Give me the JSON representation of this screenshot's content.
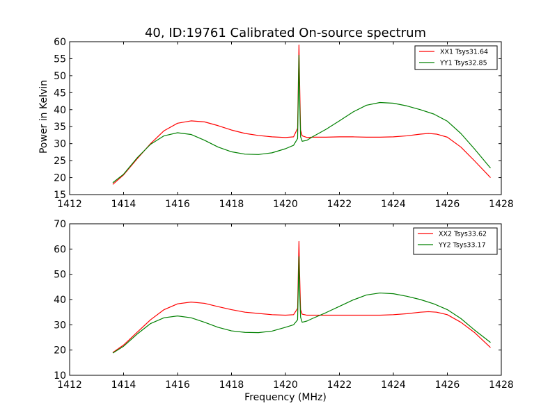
{
  "figure": {
    "title": "40, ID:19761 Calibrated On-source spectrum",
    "xlabel": "Frequency (MHz)",
    "ylabel": "Power in Kelvin"
  },
  "chart_data": [
    {
      "type": "line",
      "title": "40, ID:19761 Calibrated On-source spectrum",
      "xlabel": "",
      "ylabel": "Power in Kelvin",
      "xlim": [
        1412,
        1428
      ],
      "ylim": [
        15,
        60
      ],
      "xticks": [
        1412,
        1414,
        1416,
        1418,
        1420,
        1422,
        1424,
        1426,
        1428
      ],
      "yticks": [
        15,
        20,
        25,
        30,
        35,
        40,
        45,
        50,
        55,
        60
      ],
      "grid": false,
      "legend_position": "top-right",
      "series": [
        {
          "name": "XX1 Tsys31.64",
          "color": "#ff0000",
          "x": [
            1413.6,
            1414.0,
            1414.5,
            1415.0,
            1415.5,
            1416.0,
            1416.5,
            1417.0,
            1417.5,
            1418.0,
            1418.5,
            1419.0,
            1419.5,
            1420.0,
            1420.3,
            1420.45,
            1420.5,
            1420.52,
            1420.56,
            1420.62,
            1420.8,
            1421.0,
            1421.5,
            1422.0,
            1422.5,
            1423.0,
            1423.5,
            1424.0,
            1424.5,
            1425.0,
            1425.3,
            1425.6,
            1426.0,
            1426.5,
            1427.0,
            1427.6
          ],
          "y": [
            18.0,
            20.8,
            25.5,
            30.0,
            33.8,
            36.0,
            36.7,
            36.4,
            35.3,
            34.0,
            33.0,
            32.4,
            32.0,
            31.8,
            32.0,
            34.5,
            59.0,
            50.0,
            34.0,
            32.3,
            31.8,
            31.9,
            31.9,
            32.0,
            32.0,
            31.9,
            31.9,
            32.0,
            32.3,
            32.8,
            33.0,
            32.8,
            31.9,
            29.0,
            25.0,
            20.0
          ]
        },
        {
          "name": "YY1 Tsys32.85",
          "color": "#008000",
          "x": [
            1413.6,
            1414.0,
            1414.5,
            1415.0,
            1415.5,
            1416.0,
            1416.5,
            1417.0,
            1417.5,
            1418.0,
            1418.5,
            1419.0,
            1419.5,
            1420.0,
            1420.3,
            1420.45,
            1420.5,
            1420.52,
            1420.56,
            1420.62,
            1420.8,
            1421.0,
            1421.5,
            1422.0,
            1422.5,
            1423.0,
            1423.5,
            1424.0,
            1424.5,
            1425.0,
            1425.5,
            1426.0,
            1426.5,
            1427.0,
            1427.6
          ],
          "y": [
            18.5,
            21.0,
            25.8,
            29.8,
            32.3,
            33.2,
            32.7,
            31.0,
            29.0,
            27.6,
            26.9,
            26.8,
            27.3,
            28.5,
            29.5,
            31.5,
            56.0,
            45.0,
            32.0,
            30.7,
            31.0,
            32.0,
            34.2,
            36.7,
            39.3,
            41.3,
            42.1,
            41.9,
            41.1,
            40.0,
            38.7,
            36.6,
            33.0,
            28.5,
            22.8
          ]
        }
      ]
    },
    {
      "type": "line",
      "title": "",
      "xlabel": "Frequency (MHz)",
      "ylabel": "",
      "xlim": [
        1412,
        1428
      ],
      "ylim": [
        10,
        70
      ],
      "xticks": [
        1412,
        1414,
        1416,
        1418,
        1420,
        1422,
        1424,
        1426,
        1428
      ],
      "yticks": [
        10,
        20,
        30,
        40,
        50,
        60,
        70
      ],
      "grid": false,
      "legend_position": "top-right",
      "series": [
        {
          "name": "XX2 Tsys33.62",
          "color": "#ff0000",
          "x": [
            1413.6,
            1414.0,
            1414.5,
            1415.0,
            1415.5,
            1416.0,
            1416.5,
            1417.0,
            1417.5,
            1418.0,
            1418.5,
            1419.0,
            1419.5,
            1420.0,
            1420.3,
            1420.45,
            1420.5,
            1420.52,
            1420.56,
            1420.62,
            1420.8,
            1421.0,
            1421.5,
            1422.0,
            1422.5,
            1423.0,
            1423.5,
            1424.0,
            1424.5,
            1425.0,
            1425.3,
            1425.6,
            1426.0,
            1426.5,
            1427.0,
            1427.6
          ],
          "y": [
            19.0,
            22.0,
            27.0,
            32.0,
            36.0,
            38.3,
            39.0,
            38.5,
            37.2,
            36.0,
            35.0,
            34.5,
            34.0,
            33.8,
            34.0,
            36.5,
            63.0,
            52.0,
            36.0,
            34.2,
            33.8,
            33.8,
            33.8,
            33.8,
            33.8,
            33.8,
            33.8,
            34.0,
            34.4,
            35.0,
            35.2,
            35.0,
            34.0,
            31.0,
            27.0,
            21.0
          ]
        },
        {
          "name": "YY2 Tsys33.17",
          "color": "#008000",
          "x": [
            1413.6,
            1414.0,
            1414.5,
            1415.0,
            1415.5,
            1416.0,
            1416.5,
            1417.0,
            1417.5,
            1418.0,
            1418.5,
            1419.0,
            1419.5,
            1420.0,
            1420.3,
            1420.45,
            1420.5,
            1420.52,
            1420.56,
            1420.62,
            1420.8,
            1421.0,
            1421.5,
            1422.0,
            1422.5,
            1423.0,
            1423.5,
            1424.0,
            1424.5,
            1425.0,
            1425.5,
            1426.0,
            1426.5,
            1427.0,
            1427.6
          ],
          "y": [
            18.8,
            21.5,
            26.3,
            30.5,
            32.8,
            33.5,
            32.8,
            31.0,
            29.0,
            27.6,
            27.0,
            26.9,
            27.5,
            29.0,
            30.0,
            32.0,
            57.0,
            45.0,
            33.0,
            31.0,
            31.5,
            32.5,
            34.8,
            37.3,
            39.8,
            41.8,
            42.6,
            42.3,
            41.3,
            40.0,
            38.3,
            36.0,
            32.5,
            28.0,
            23.0
          ]
        }
      ]
    }
  ]
}
